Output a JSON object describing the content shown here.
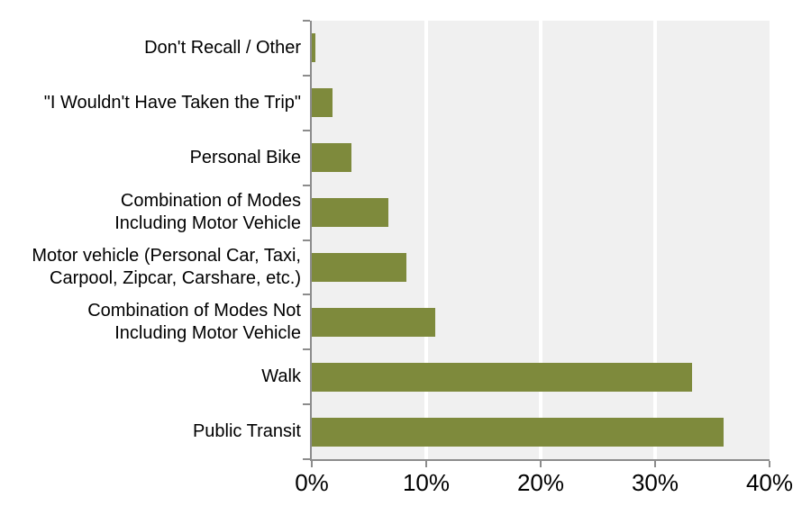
{
  "chart_data": {
    "type": "bar",
    "orientation": "horizontal",
    "title": "",
    "xlabel": "",
    "ylabel": "",
    "legend": "none",
    "grid": "vertical major gridlines (white) on gray plot background",
    "categories": [
      "Don't Recall / Other",
      "\"I Wouldn't Have Taken the Trip\"",
      "Personal Bike",
      "Combination of Modes Including Motor Vehicle",
      "Motor vehicle (Personal Car, Taxi, Carpool, Zipcar, Carshare, etc.)",
      "Combination of Modes Not Including Motor Vehicle",
      "Walk",
      "Public Transit"
    ],
    "category_lines": [
      [
        "Don't Recall / Other"
      ],
      [
        "\"I Wouldn't Have Taken the Trip\""
      ],
      [
        "Personal Bike"
      ],
      [
        "Combination of Modes",
        "Including Motor Vehicle"
      ],
      [
        "Motor vehicle (Personal Car, Taxi,",
        "Carpool, Zipcar, Carshare, etc.)"
      ],
      [
        "Combination of Modes Not",
        "Including Motor Vehicle"
      ],
      [
        "Walk"
      ],
      [
        "Public Transit"
      ]
    ],
    "values": [
      0.3,
      1.8,
      3.5,
      6.7,
      8.3,
      10.8,
      33.2,
      36.0
    ],
    "value_unit": "%",
    "xlim": [
      0,
      40
    ],
    "x_ticks": [
      0,
      10,
      20,
      30,
      40
    ],
    "x_tick_labels": [
      "0%",
      "10%",
      "20%",
      "30%",
      "40%"
    ],
    "gridline_ticks": [
      10,
      20,
      30
    ],
    "colors": {
      "bar": "#7E8A3C",
      "plot_background": "#F0F0F0",
      "gridline": "#FFFFFF",
      "axis": "#8C8C8C",
      "text": "#000000",
      "page_background": "#FFFFFF"
    }
  }
}
